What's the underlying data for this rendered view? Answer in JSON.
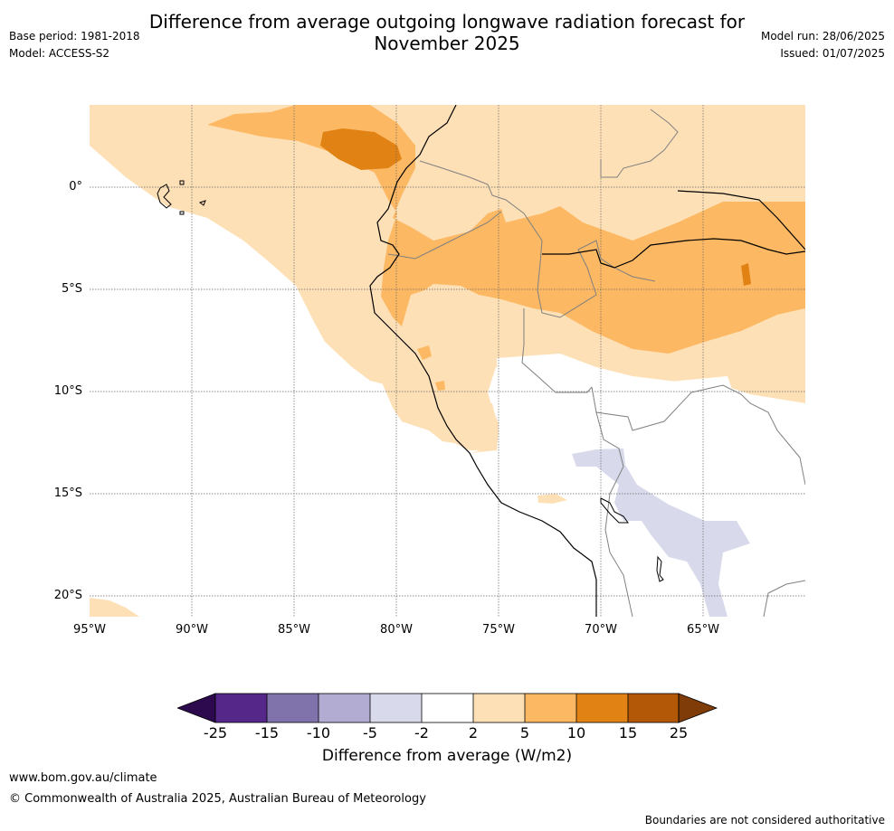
{
  "title_line1": "Difference from average outgoing longwave radiation forecast for",
  "title_line2": "November 2025",
  "base_period": "Base period: 1981-2018",
  "model": "Model: ACCESS-S2",
  "model_run": "Model run: 28/06/2025",
  "issued": "Issued: 01/07/2025",
  "map": {
    "lat_labels": [
      "0°",
      "5°S",
      "10°S",
      "15°S",
      "20°S"
    ],
    "lon_labels": [
      "95°W",
      "90°W",
      "85°W",
      "80°W",
      "75°W",
      "70°W",
      "65°W"
    ]
  },
  "colorbar": {
    "ticks": [
      "-25",
      "-15",
      "-10",
      "-5",
      "-2",
      "2",
      "5",
      "10",
      "15",
      "25"
    ],
    "colors": {
      "below_min": "#2d0a4e",
      "c1": "#542788",
      "c2": "#8073ac",
      "c3": "#b2abd2",
      "c4": "#d8daeb",
      "c5": "#ffffff",
      "c6": "#fee0b6",
      "c7": "#fdb863",
      "c8": "#e08214",
      "c9": "#b35806",
      "above_max": "#7f3b08"
    },
    "label": "Difference from average (W/m2)"
  },
  "footer": {
    "url": "www.bom.gov.au/climate",
    "copyright": "© Commonwealth of Australia 2025, Australian Bureau of Meteorology",
    "disclaimer": "Boundaries are not considered authoritative"
  }
}
